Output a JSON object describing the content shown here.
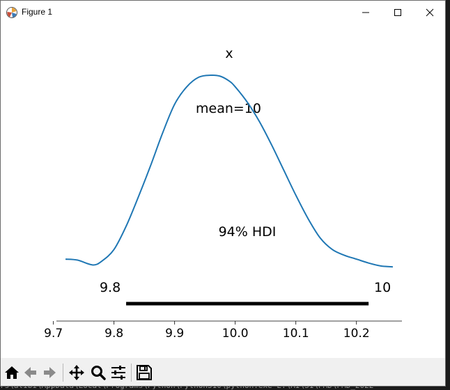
{
  "window": {
    "title": "Figure 1",
    "controls": [
      "minimize",
      "maximize",
      "close"
    ]
  },
  "background_terminal": {
    "text": "rs\\alibi\\AppData\\Local\\Programs\\Python\\Python310\\python.exe E:\\AI\\S1\\PMD\\PMD_2022"
  },
  "chart_data": {
    "type": "line",
    "title": "x",
    "annotations": {
      "mean_label": "mean=10",
      "hdi_label": "94% HDI",
      "hdi_low_label": "9.8",
      "hdi_high_label": "10"
    },
    "hdi": [
      9.82,
      10.22
    ],
    "xlim": [
      9.705,
      10.275
    ],
    "x_ticks": [
      9.7,
      9.8,
      9.9,
      10.0,
      10.1,
      10.2
    ],
    "x_tick_labels": [
      "9.7",
      "9.8",
      "9.9",
      "10.0",
      "10.1",
      "10.2"
    ],
    "xlabel": "",
    "ylabel": "",
    "grid": false,
    "series": [
      {
        "color": "#1f77b4",
        "x": [
          9.72,
          9.74,
          9.765,
          9.78,
          9.8,
          9.82,
          9.84,
          9.86,
          9.88,
          9.9,
          9.92,
          9.94,
          9.96,
          9.975,
          9.99,
          10.0,
          10.02,
          10.04,
          10.06,
          10.08,
          10.1,
          10.12,
          10.14,
          10.16,
          10.18,
          10.2,
          10.22,
          10.24,
          10.26
        ],
        "y": [
          0.05,
          0.045,
          0.02,
          0.04,
          0.1,
          0.22,
          0.37,
          0.53,
          0.7,
          0.85,
          0.94,
          0.99,
          1.0,
          0.995,
          0.97,
          0.94,
          0.86,
          0.76,
          0.64,
          0.51,
          0.38,
          0.26,
          0.16,
          0.1,
          0.07,
          0.05,
          0.03,
          0.015,
          0.01
        ]
      }
    ]
  },
  "toolbar": {
    "items": [
      "home-icon",
      "back-icon",
      "forward-icon",
      "pan-icon",
      "zoom-icon",
      "configure-icon",
      "save-icon"
    ]
  }
}
